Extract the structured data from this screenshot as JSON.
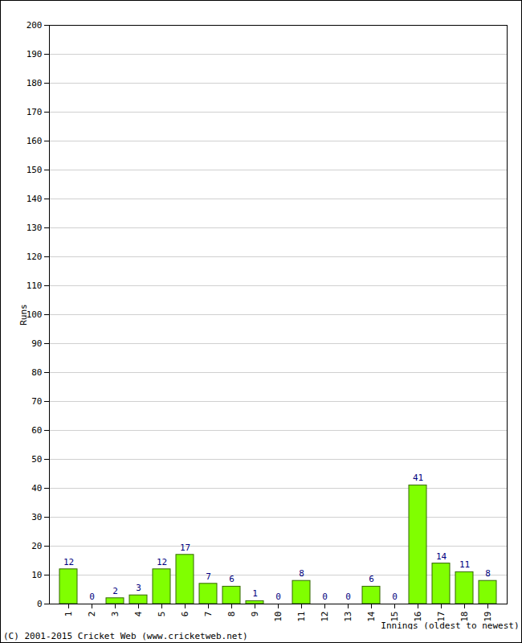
{
  "chart_data": {
    "type": "bar",
    "categories": [
      "1",
      "2",
      "3",
      "4",
      "5",
      "6",
      "7",
      "8",
      "9",
      "10",
      "11",
      "12",
      "13",
      "14",
      "15",
      "16",
      "17",
      "18",
      "19"
    ],
    "values": [
      12,
      0,
      2,
      3,
      12,
      17,
      7,
      6,
      1,
      0,
      8,
      0,
      0,
      6,
      0,
      41,
      14,
      11,
      8
    ],
    "color": "#80ff00",
    "x_label": "Innings (oldest to newest)",
    "y_label": "Runs",
    "caption": "(C) 2001-2015 Cricket Web (www.cricketweb.net)",
    "ylim": [
      0,
      200
    ],
    "yticks": [
      0,
      10,
      20,
      30,
      40,
      50,
      60,
      70,
      80,
      90,
      100,
      110,
      120,
      130,
      140,
      150,
      160,
      170,
      180,
      190,
      200
    ],
    "grid": true,
    "data_labels": true
  }
}
